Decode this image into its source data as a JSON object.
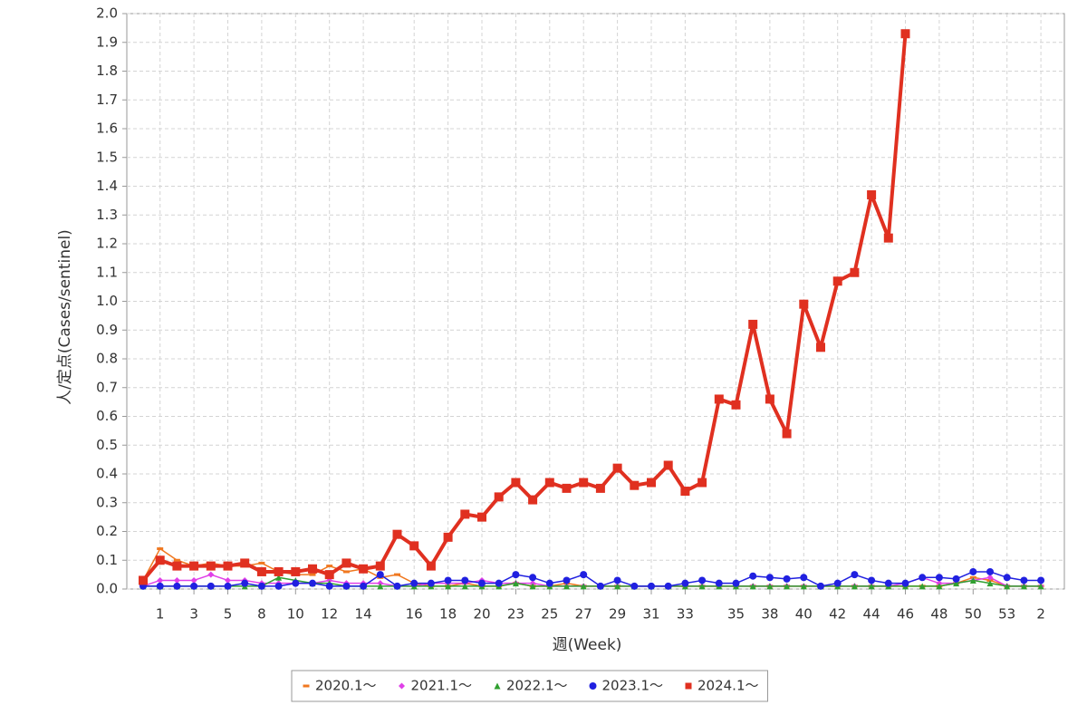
{
  "chart_data": {
    "type": "line",
    "x_label": "週(Week)",
    "y_label": "人/定点(Cases/sentinel)",
    "categories": [
      null,
      "1",
      null,
      "3",
      null,
      "5",
      null,
      "8",
      null,
      "10",
      null,
      "12",
      null,
      "14",
      null,
      null,
      "16",
      null,
      "18",
      null,
      "20",
      null,
      "23",
      null,
      "25",
      null,
      "27",
      null,
      "29",
      null,
      "31",
      null,
      "33",
      null,
      null,
      "35",
      null,
      "38",
      null,
      "40",
      null,
      "42",
      null,
      "44",
      null,
      "46",
      null,
      "48",
      null,
      "50",
      null,
      "53",
      null,
      "2"
    ],
    "ylim": [
      0,
      2
    ],
    "yticks": [
      {
        "value": 0,
        "label": "0.0"
      },
      0.1,
      0.2,
      0.3,
      0.4,
      0.5,
      0.6,
      0.7,
      0.8,
      0.9,
      {
        "value": 1,
        "label": "1.0"
      },
      1.1,
      1.2,
      1.3,
      1.4,
      1.5,
      1.6,
      1.7,
      1.8,
      1.9,
      {
        "value": 2,
        "label": "2.0"
      }
    ],
    "grid": true,
    "legend": "bottom",
    "series": [
      {
        "name": "2020.1～",
        "color": "#f07820",
        "marker": "dash",
        "values": [
          0.03,
          0.14,
          0.1,
          0.08,
          0.09,
          0.08,
          0.08,
          0.09,
          0.06,
          0.05,
          0.05,
          0.08,
          0.06,
          0.07,
          0.04,
          0.05,
          0.02,
          0.01,
          0.01,
          0.02,
          0.01,
          0.01,
          0.02,
          0.01,
          0.01,
          0.02,
          0.01,
          0.01,
          0.01,
          0.01,
          0.01,
          0.01,
          0.01,
          0.01,
          0.01,
          0.01,
          0.01,
          0.01,
          0.01,
          0.01,
          0.01,
          0.01,
          0.01,
          0.01,
          0.01,
          0.01,
          0.01,
          0.01,
          0.02,
          0.04,
          0.03,
          0.01,
          0.01,
          0.01
        ]
      },
      {
        "name": "2021.1～",
        "color": "#e040e8",
        "marker": "diamond",
        "values": [
          0.01,
          0.03,
          0.03,
          0.03,
          0.05,
          0.03,
          0.03,
          0.02,
          0.02,
          0.02,
          0.02,
          0.03,
          0.02,
          0.02,
          0.02,
          0.01,
          0.01,
          0.02,
          0.02,
          0.02,
          0.03,
          0.02,
          0.02,
          0.02,
          0.01,
          0.01,
          0.01,
          0.01,
          0.01,
          0.01,
          0.01,
          0.01,
          0.01,
          0.01,
          0.01,
          0.01,
          0.01,
          0.01,
          0.01,
          0.01,
          0.01,
          0.01,
          0.01,
          0.01,
          0.01,
          0.02,
          0.04,
          0.02,
          0.02,
          0.03,
          0.04,
          0.01,
          0.01,
          0.01
        ]
      },
      {
        "name": "2022.1～",
        "color": "#30a030",
        "marker": "triangle",
        "values": [
          0.01,
          0.01,
          0.01,
          0.01,
          0.01,
          0.01,
          0.01,
          0.01,
          0.04,
          0.03,
          0.02,
          0.02,
          0.01,
          0.01,
          0.01,
          0.01,
          0.01,
          0.01,
          0.01,
          0.01,
          0.01,
          0.01,
          0.02,
          0.01,
          0.01,
          0.01,
          0.01,
          0.01,
          0.01,
          0.01,
          0.01,
          0.01,
          0.01,
          0.01,
          0.01,
          0.01,
          0.01,
          0.01,
          0.01,
          0.01,
          0.01,
          0.01,
          0.01,
          0.01,
          0.01,
          0.01,
          0.01,
          0.01,
          0.02,
          0.03,
          0.02,
          0.01,
          0.01,
          0.01
        ]
      },
      {
        "name": "2023.1～",
        "color": "#2020e0",
        "marker": "circle",
        "values": [
          0.01,
          0.01,
          0.01,
          0.01,
          0.01,
          0.01,
          0.02,
          0.01,
          0.01,
          0.02,
          0.02,
          0.01,
          0.01,
          0.01,
          0.05,
          0.01,
          0.02,
          0.02,
          0.03,
          0.03,
          0.02,
          0.02,
          0.05,
          0.04,
          0.02,
          0.03,
          0.05,
          0.01,
          0.03,
          0.01,
          0.01,
          0.01,
          0.02,
          0.03,
          0.02,
          0.02,
          0.045,
          0.04,
          0.035,
          0.04,
          0.01,
          0.02,
          0.05,
          0.03,
          0.02,
          0.02,
          0.04,
          0.04,
          0.035,
          0.06,
          0.06,
          0.04,
          0.03,
          0.03
        ]
      },
      {
        "name": "2024.1～",
        "color": "#e03020",
        "marker": "square",
        "values": [
          0.03,
          0.1,
          0.08,
          0.08,
          0.08,
          0.08,
          0.09,
          0.06,
          0.06,
          0.06,
          0.07,
          0.05,
          0.09,
          0.07,
          0.08,
          0.19,
          0.15,
          0.08,
          0.18,
          0.26,
          0.25,
          0.32,
          0.37,
          0.31,
          0.37,
          0.35,
          0.37,
          0.35,
          0.42,
          0.36,
          0.37,
          0.43,
          0.34,
          0.37,
          0.66,
          0.64,
          0.92,
          0.66,
          0.54,
          0.99,
          0.84,
          1.07,
          1.1,
          1.37,
          1.22,
          1.93,
          null,
          null,
          null,
          null,
          null,
          null,
          null,
          null
        ]
      }
    ]
  }
}
